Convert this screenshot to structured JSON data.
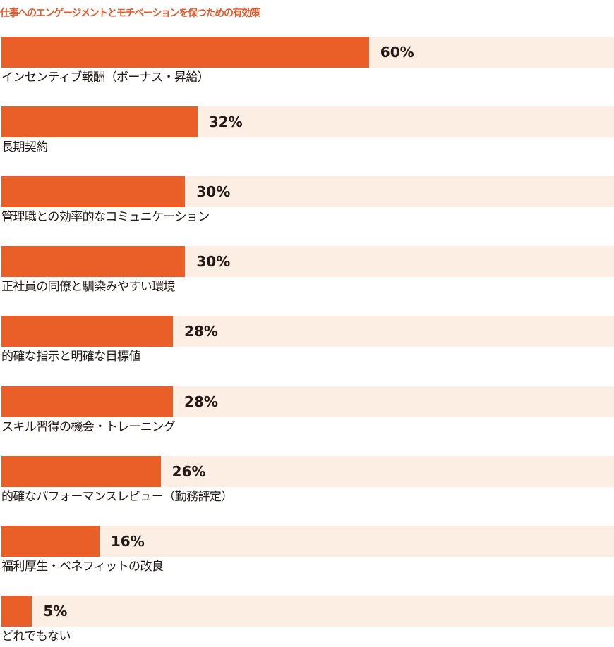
{
  "colors": {
    "title": "#e8592a",
    "bar": "#ea5e27",
    "track": "#fdeee4",
    "text": "#231815"
  },
  "chart_data": {
    "type": "bar",
    "orientation": "horizontal",
    "title": "仕事へのエンゲージメントとモチベーションを保つための有効策",
    "xlim": [
      0,
      100
    ],
    "value_suffix": "%",
    "categories": [
      "インセンティブ報酬（ボーナス・昇給）",
      "長期契約",
      "管理職との効率的なコミュニケーション",
      "正社員の同僚と馴染みやすい環境",
      "的確な指示と明確な目標値",
      "スキル習得の機会・トレーニング",
      "的確なパフォーマンスレビュー（勤務評定）",
      "福利厚生・ベネフィットの改良",
      "どれでもない"
    ],
    "values": [
      60,
      32,
      30,
      30,
      28,
      28,
      26,
      16,
      5
    ],
    "value_labels": [
      "60%",
      "32%",
      "30%",
      "30%",
      "28%",
      "28%",
      "26%",
      "16%",
      "5%"
    ]
  }
}
